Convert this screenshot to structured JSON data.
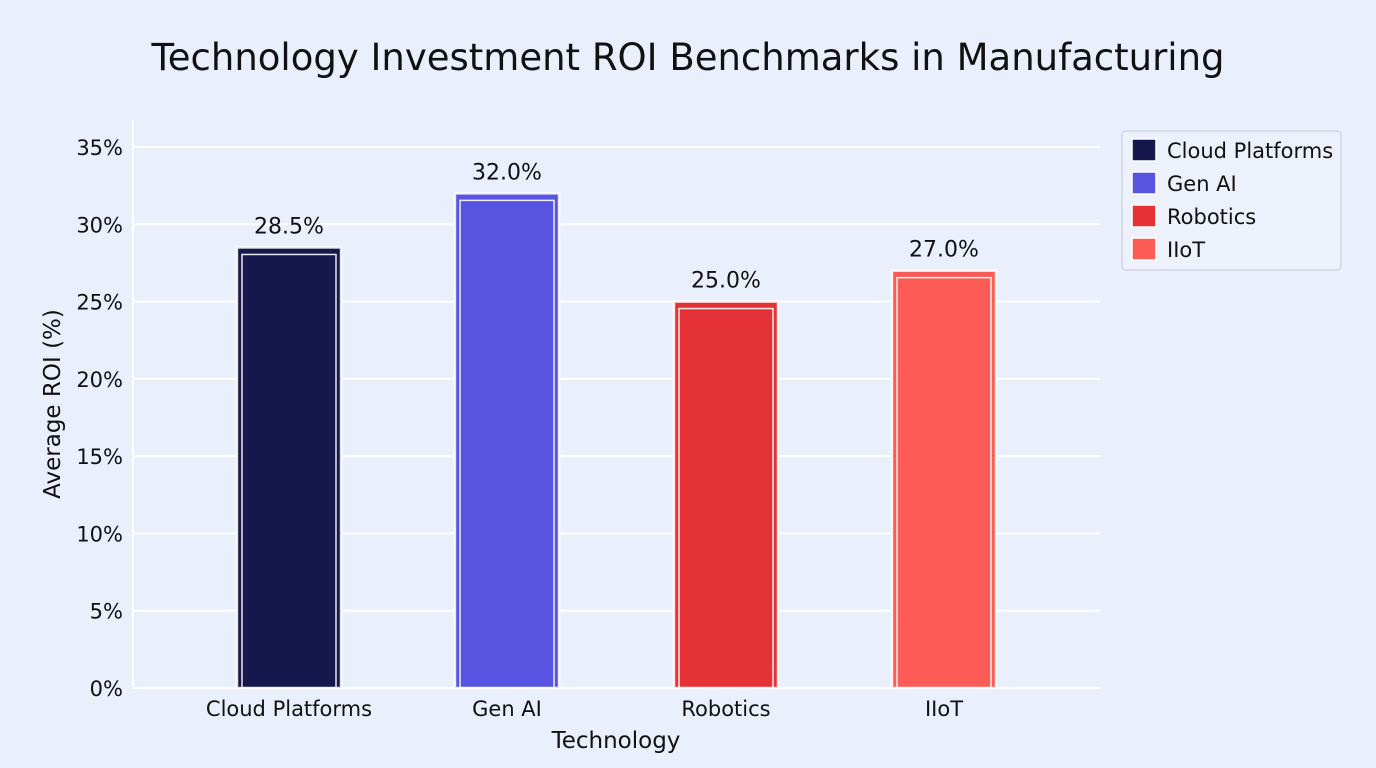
{
  "chart_data": {
    "type": "bar",
    "title": "Technology Investment ROI Benchmarks in Manufacturing",
    "xlabel": "Technology",
    "ylabel": "Average ROI (%)",
    "categories": [
      "Cloud Platforms",
      "Gen AI",
      "Robotics",
      "IIoT"
    ],
    "values": [
      28.5,
      32.0,
      25.0,
      27.0
    ],
    "data_labels": [
      "28.5%",
      "32.0%",
      "25.0%",
      "27.0%"
    ],
    "colors": [
      "#16174d",
      "#5654e0",
      "#e53236",
      "#fd5b56"
    ],
    "ylim": [
      0,
      35
    ],
    "yticks": [
      0,
      5,
      10,
      15,
      20,
      25,
      30,
      35
    ],
    "ytick_labels": [
      "0%",
      "5%",
      "10%",
      "15%",
      "20%",
      "25%",
      "30%",
      "35%"
    ],
    "grid": "horizontal",
    "legend": {
      "position": "top-right",
      "entries": [
        "Cloud Platforms",
        "Gen AI",
        "Robotics",
        "IIoT"
      ]
    }
  }
}
